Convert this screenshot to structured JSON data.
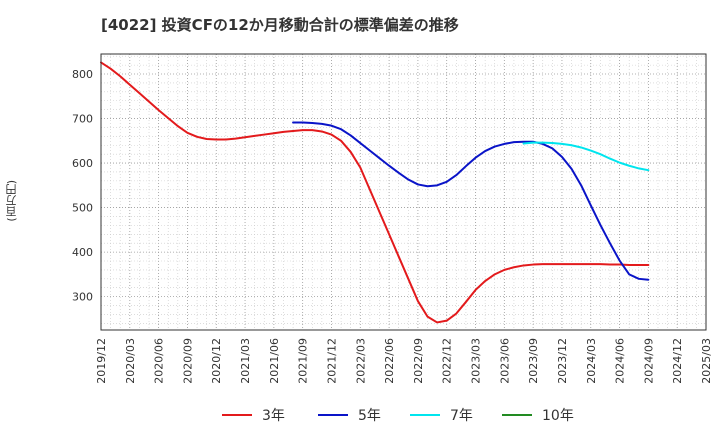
{
  "title": "[4022]  投資CFの12か月移動合計の標準偏差の推移",
  "chart_data": {
    "type": "line",
    "title": "[4022]  投資CFの12か月移動合計の標準偏差の推移",
    "ylabel": "(百万円)",
    "xlabel": "",
    "ylim": [
      225,
      845
    ],
    "yticks": [
      300,
      400,
      500,
      600,
      700,
      800
    ],
    "x_tick_labels": [
      "2019/12",
      "2020/03",
      "2020/06",
      "2020/09",
      "2020/12",
      "2021/03",
      "2021/06",
      "2021/09",
      "2021/12",
      "2022/03",
      "2022/06",
      "2022/09",
      "2022/12",
      "2023/03",
      "2023/06",
      "2023/09",
      "2023/12",
      "2024/03",
      "2024/06",
      "2024/09",
      "2024/12",
      "2025/03"
    ],
    "grid": true,
    "legend_position": "bottom",
    "series": [
      {
        "name": "3年",
        "color": "#e31a1c",
        "x": [
          "2019/12",
          "2020/01",
          "2020/02",
          "2020/03",
          "2020/04",
          "2020/05",
          "2020/06",
          "2020/07",
          "2020/08",
          "2020/09",
          "2020/10",
          "2020/11",
          "2020/12",
          "2021/01",
          "2021/02",
          "2021/03",
          "2021/04",
          "2021/05",
          "2021/06",
          "2021/07",
          "2021/08",
          "2021/09",
          "2021/10",
          "2021/11",
          "2021/12",
          "2022/01",
          "2022/02",
          "2022/03",
          "2022/04",
          "2022/05",
          "2022/06",
          "2022/07",
          "2022/08",
          "2022/09",
          "2022/10",
          "2022/11",
          "2022/12",
          "2023/01",
          "2023/02",
          "2023/03",
          "2023/04",
          "2023/05",
          "2023/06",
          "2023/07",
          "2023/08",
          "2023/09",
          "2023/10",
          "2023/11",
          "2023/12",
          "2024/01",
          "2024/02",
          "2024/03",
          "2024/04",
          "2024/05",
          "2024/06",
          "2024/07",
          "2024/08",
          "2024/09"
        ],
        "values": [
          826,
          812,
          795,
          776,
          757,
          738,
          719,
          701,
          683,
          668,
          659,
          654,
          653,
          653,
          655,
          658,
          661,
          664,
          667,
          670,
          672,
          674,
          674,
          671,
          664,
          650,
          625,
          590,
          540,
          490,
          440,
          390,
          340,
          290,
          255,
          242,
          246,
          262,
          288,
          315,
          335,
          350,
          360,
          366,
          370,
          372,
          373,
          373,
          373,
          373,
          373,
          373,
          373,
          372,
          372,
          371,
          371,
          371
        ]
      },
      {
        "name": "5年",
        "color": "#0a14c8",
        "x": [
          "2021/08",
          "2021/09",
          "2021/10",
          "2021/11",
          "2021/12",
          "2022/01",
          "2022/02",
          "2022/03",
          "2022/04",
          "2022/05",
          "2022/06",
          "2022/07",
          "2022/08",
          "2022/09",
          "2022/10",
          "2022/11",
          "2022/12",
          "2023/01",
          "2023/02",
          "2023/03",
          "2023/04",
          "2023/05",
          "2023/06",
          "2023/07",
          "2023/08",
          "2023/09",
          "2023/10",
          "2023/11",
          "2023/12",
          "2024/01",
          "2024/02",
          "2024/03",
          "2024/04",
          "2024/05",
          "2024/06",
          "2024/07",
          "2024/08",
          "2024/09"
        ],
        "values": [
          691,
          691,
          690,
          688,
          684,
          676,
          662,
          645,
          628,
          611,
          594,
          578,
          563,
          552,
          548,
          550,
          558,
          573,
          593,
          612,
          627,
          637,
          643,
          647,
          648,
          648,
          643,
          633,
          614,
          587,
          550,
          505,
          461,
          420,
          381,
          350,
          340,
          338
        ]
      },
      {
        "name": "7年",
        "color": "#00e5ee",
        "x": [
          "2023/08",
          "2023/09",
          "2023/10",
          "2023/11",
          "2023/12",
          "2024/01",
          "2024/02",
          "2024/03",
          "2024/04",
          "2024/05",
          "2024/06",
          "2024/07",
          "2024/08",
          "2024/09"
        ],
        "values": [
          644,
          646,
          646,
          645,
          643,
          640,
          635,
          628,
          620,
          610,
          601,
          594,
          588,
          584
        ]
      },
      {
        "name": "10年",
        "color": "#228b22",
        "x": [],
        "values": []
      }
    ]
  }
}
